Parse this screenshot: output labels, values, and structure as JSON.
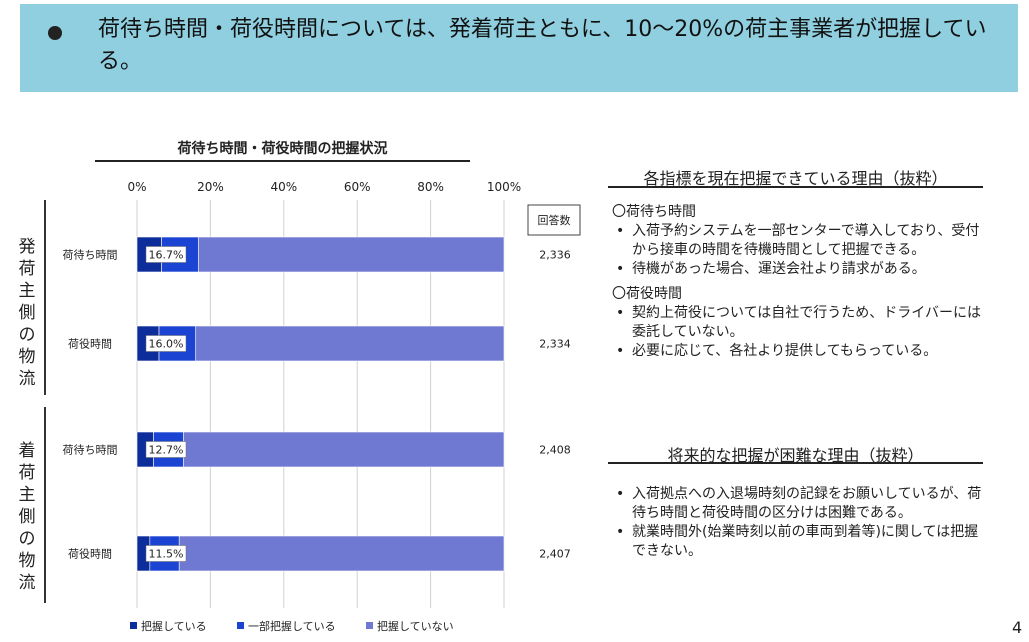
{
  "banner": {
    "text": "荷待ち時間・荷役時間については、発着荷主ともに、10～20%の荷主事業者が把握している。"
  },
  "chart_data": {
    "type": "bar",
    "orientation": "horizontal",
    "stacked": true,
    "title": "荷待ち時間・荷役時間の把握状況",
    "x_ticks": [
      "0%",
      "20%",
      "40%",
      "60%",
      "80%",
      "100%"
    ],
    "xlim": [
      0,
      100
    ],
    "grid": true,
    "legend_position": "bottom",
    "response_header": "回答数",
    "groups": [
      {
        "label": "発荷主側の物流",
        "rows": [
          {
            "category": "荷待ち時間",
            "label": "16.7%",
            "responses": "2,336",
            "values": [
              6.7,
              10.0,
              83.3
            ]
          },
          {
            "category": "荷役時間",
            "label": "16.0%",
            "responses": "2,334",
            "values": [
              6.0,
              10.0,
              84.0
            ]
          }
        ]
      },
      {
        "label": "着荷主側の物流",
        "rows": [
          {
            "category": "荷待ち時間",
            "label": "12.7%",
            "responses": "2,408",
            "values": [
              4.5,
              8.2,
              87.3
            ]
          },
          {
            "category": "荷役時間",
            "label": "11.5%",
            "responses": "2,407",
            "values": [
              3.5,
              8.0,
              88.5
            ]
          }
        ]
      }
    ],
    "series": [
      {
        "name": "把握している",
        "color": "#0d2d9b"
      },
      {
        "name": "一部把握している",
        "color": "#1a44d1"
      },
      {
        "name": "把握していない",
        "color": "#7079d2"
      }
    ]
  },
  "right_panel": {
    "reason_heading": "各指標を現在把握できている理由（抜粋）",
    "sections": [
      {
        "title": "〇荷待ち時間",
        "items": [
          "入荷予約システムを一部センターで導入しており、受付から接車の時間を待機時間として把握できる。",
          "待機があった場合、運送会社より請求がある。"
        ]
      },
      {
        "title": "〇荷役時間",
        "items": [
          "契約上荷役については自社で行うため、ドライバーには委託していない。",
          "必要に応じて、各社より提供してもらっている。"
        ]
      }
    ],
    "difficulty_heading": "将来的な把握が困難な理由（抜粋）",
    "difficulty_items": [
      "入荷拠点への入退場時刻の記録をお願いしているが、荷待ち時間と荷役時間の区分けは困難である。",
      "就業時間外(始業時刻以前の車両到着等)に関しては把握できない。"
    ]
  },
  "page_number": "4"
}
